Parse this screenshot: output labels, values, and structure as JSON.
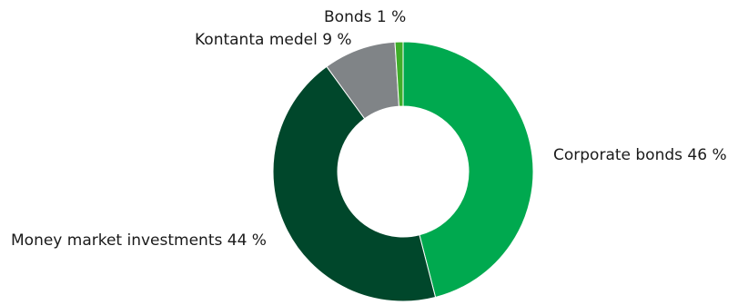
{
  "chart_data": {
    "type": "pie",
    "variant": "donut",
    "start": "top",
    "direction": "clockwise",
    "slices": [
      {
        "label": "Corporate bonds 46 %",
        "value": 46,
        "color": "#00a94f"
      },
      {
        "label": "Money market investments 44 %",
        "value": 44,
        "color": "#00472b"
      },
      {
        "label": "Kontanta medel 9 %",
        "value": 9,
        "color": "#808487"
      },
      {
        "label": "Bonds 1 %",
        "value": 1,
        "color": "#3fae2a"
      }
    ],
    "legend": "none"
  }
}
